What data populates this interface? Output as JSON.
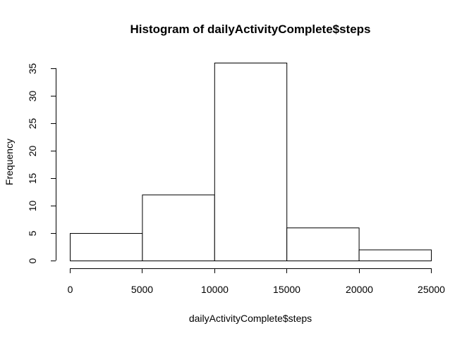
{
  "chart_data": {
    "type": "bar",
    "title": "Histogram of dailyActivityComplete$steps",
    "xlabel": "dailyActivityComplete$steps",
    "ylabel": "Frequency",
    "bins": [
      {
        "from": 0,
        "to": 5000,
        "count": 5
      },
      {
        "from": 5000,
        "to": 10000,
        "count": 12
      },
      {
        "from": 10000,
        "to": 15000,
        "count": 36
      },
      {
        "from": 15000,
        "to": 20000,
        "count": 6
      },
      {
        "from": 20000,
        "to": 25000,
        "count": 2
      }
    ],
    "xlim": [
      0,
      25000
    ],
    "ylim": [
      0,
      36
    ],
    "xticks": [
      0,
      5000,
      10000,
      15000,
      20000,
      25000
    ],
    "yticks": [
      0,
      5,
      10,
      15,
      20,
      25,
      30,
      35
    ],
    "grid": false,
    "bar_fill": "#ffffff",
    "bar_stroke": "#000000"
  }
}
